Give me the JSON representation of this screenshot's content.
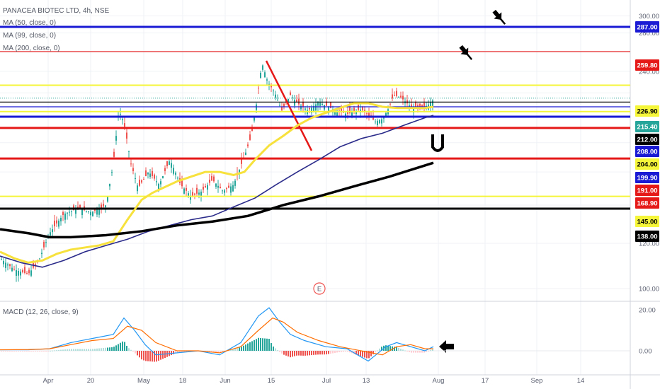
{
  "legend": {
    "title": "PANACEA BIOTEC LTD, 4h, NSE",
    "ma1": "MA (50, close, 0)",
    "ma2": "MA (99, close, 0)",
    "ma3": "MA (200, close, 0)",
    "macd": "MACD (12, 26, close, 9)"
  },
  "earnings_marker": "E",
  "chart_data": [
    {
      "type": "line",
      "title": "PANACEA BIOTEC LTD, 4h, NSE",
      "x_tick_labels": [
        "Apr",
        "20",
        "May",
        "18",
        "Jun",
        "15",
        "Jul",
        "13",
        "Aug",
        "17",
        "Sep",
        "14"
      ],
      "y_tick_labels": [
        "300.00",
        "280.00",
        "240.00",
        "120.00",
        "100.00"
      ],
      "ylim": [
        95,
        305
      ],
      "y_scale": "log",
      "price_levels": [
        {
          "label": "287.00",
          "value": 287.0,
          "color": "#1a1ad4",
          "style": "thick"
        },
        {
          "label": "259.80",
          "value": 259.8,
          "color": "#e61919",
          "style": "thin"
        },
        {
          "label": "226.90",
          "value": 226.9,
          "color": "#f5f53a",
          "style": "medium"
        },
        {
          "label": "215.40",
          "value": 215.4,
          "color": "#26a69a",
          "style": "dotted"
        },
        {
          "label": "212.00",
          "value": 212.0,
          "color": "#000000",
          "style": "thin"
        },
        {
          "label": "208.00",
          "value": 208.0,
          "color": "#1a1ad4",
          "style": "thin"
        },
        {
          "label": "204.00",
          "value": 204.0,
          "color": "#f5f53a",
          "style": "medium"
        },
        {
          "label": "199.90",
          "value": 199.9,
          "color": "#1a1ad4",
          "style": "thick"
        },
        {
          "label": "191.00",
          "value": 191.0,
          "color": "#e61919",
          "style": "thick"
        },
        {
          "label": "168.90",
          "value": 168.9,
          "color": "#e61919",
          "style": "thick"
        },
        {
          "label": "145.00",
          "value": 145.0,
          "color": "#f5f53a",
          "style": "medium"
        },
        {
          "label": "138.00",
          "value": 138.0,
          "color": "#000000",
          "style": "thick"
        }
      ],
      "series": [
        {
          "name": "MA (50, close, 0)",
          "color": "#f7e13c",
          "x": [
            0,
            20,
            40,
            60,
            80,
            100,
            120,
            140,
            160,
            180,
            200,
            215,
            230,
            250,
            270,
            290,
            310,
            330,
            345,
            360,
            380,
            400,
            420,
            440,
            460,
            480,
            500,
            520,
            540,
            560,
            580,
            600,
            612
          ],
          "y": [
            116,
            113,
            111,
            112,
            115,
            117,
            118,
            119,
            121,
            132,
            143,
            147,
            150,
            154,
            157,
            160,
            160,
            158,
            160,
            168,
            178,
            185,
            193,
            199,
            203,
            207,
            211,
            211,
            208,
            207,
            207,
            207,
            208
          ]
        },
        {
          "name": "MA (99, close, 0)",
          "color": "#2a2a8a",
          "x": [
            0,
            30,
            60,
            90,
            120,
            150,
            180,
            210,
            240,
            270,
            300,
            330,
            360,
            390,
            420,
            450,
            480,
            510,
            540,
            570,
            600,
            612
          ],
          "y": [
            114,
            111,
            109,
            112,
            116,
            119,
            122,
            126,
            129,
            132,
            134,
            139,
            144,
            152,
            160,
            168,
            177,
            183,
            187,
            193,
            199,
            201
          ]
        },
        {
          "name": "MA (200, close, 0)",
          "color": "#000000",
          "x": [
            0,
            40,
            70,
            100,
            150,
            200,
            250,
            300,
            350,
            400,
            450,
            500,
            550,
            612
          ],
          "y": [
            127,
            125,
            123,
            123,
            124,
            126,
            129,
            131,
            134,
            140,
            145,
            151,
            157,
            166
          ]
        }
      ]
    },
    {
      "type": "bar",
      "title": "MACD (12, 26, close, 9)",
      "y_tick_labels": [
        "20.00",
        "0.00"
      ],
      "ylim": [
        -15,
        22
      ],
      "series": [
        {
          "name": "MACD",
          "color": "#2196f3",
          "x": [
            0,
            40,
            70,
            100,
            130,
            160,
            175,
            190,
            205,
            220,
            250,
            280,
            310,
            340,
            365,
            380,
            395,
            410,
            430,
            460,
            490,
            520,
            545,
            560,
            580,
            600,
            612
          ],
          "y": [
            0.5,
            0.5,
            1,
            4,
            6,
            8,
            16,
            10,
            3,
            -2,
            -1,
            0,
            -2,
            4,
            17,
            21,
            14,
            8,
            5,
            2,
            1,
            -5,
            2,
            4,
            2,
            0,
            2
          ]
        },
        {
          "name": "Signal",
          "color": "#ff6d00",
          "x": [
            0,
            40,
            70,
            100,
            130,
            160,
            180,
            200,
            220,
            250,
            280,
            310,
            340,
            365,
            385,
            400,
            420,
            450,
            480,
            510,
            540,
            560,
            580,
            600,
            612
          ],
          "y": [
            0.5,
            0.6,
            1,
            3,
            5,
            6,
            12,
            10,
            4,
            0,
            0,
            -1,
            2,
            10,
            16,
            14,
            9,
            5,
            2,
            0,
            -2,
            2,
            3,
            1,
            1
          ]
        }
      ]
    }
  ]
}
